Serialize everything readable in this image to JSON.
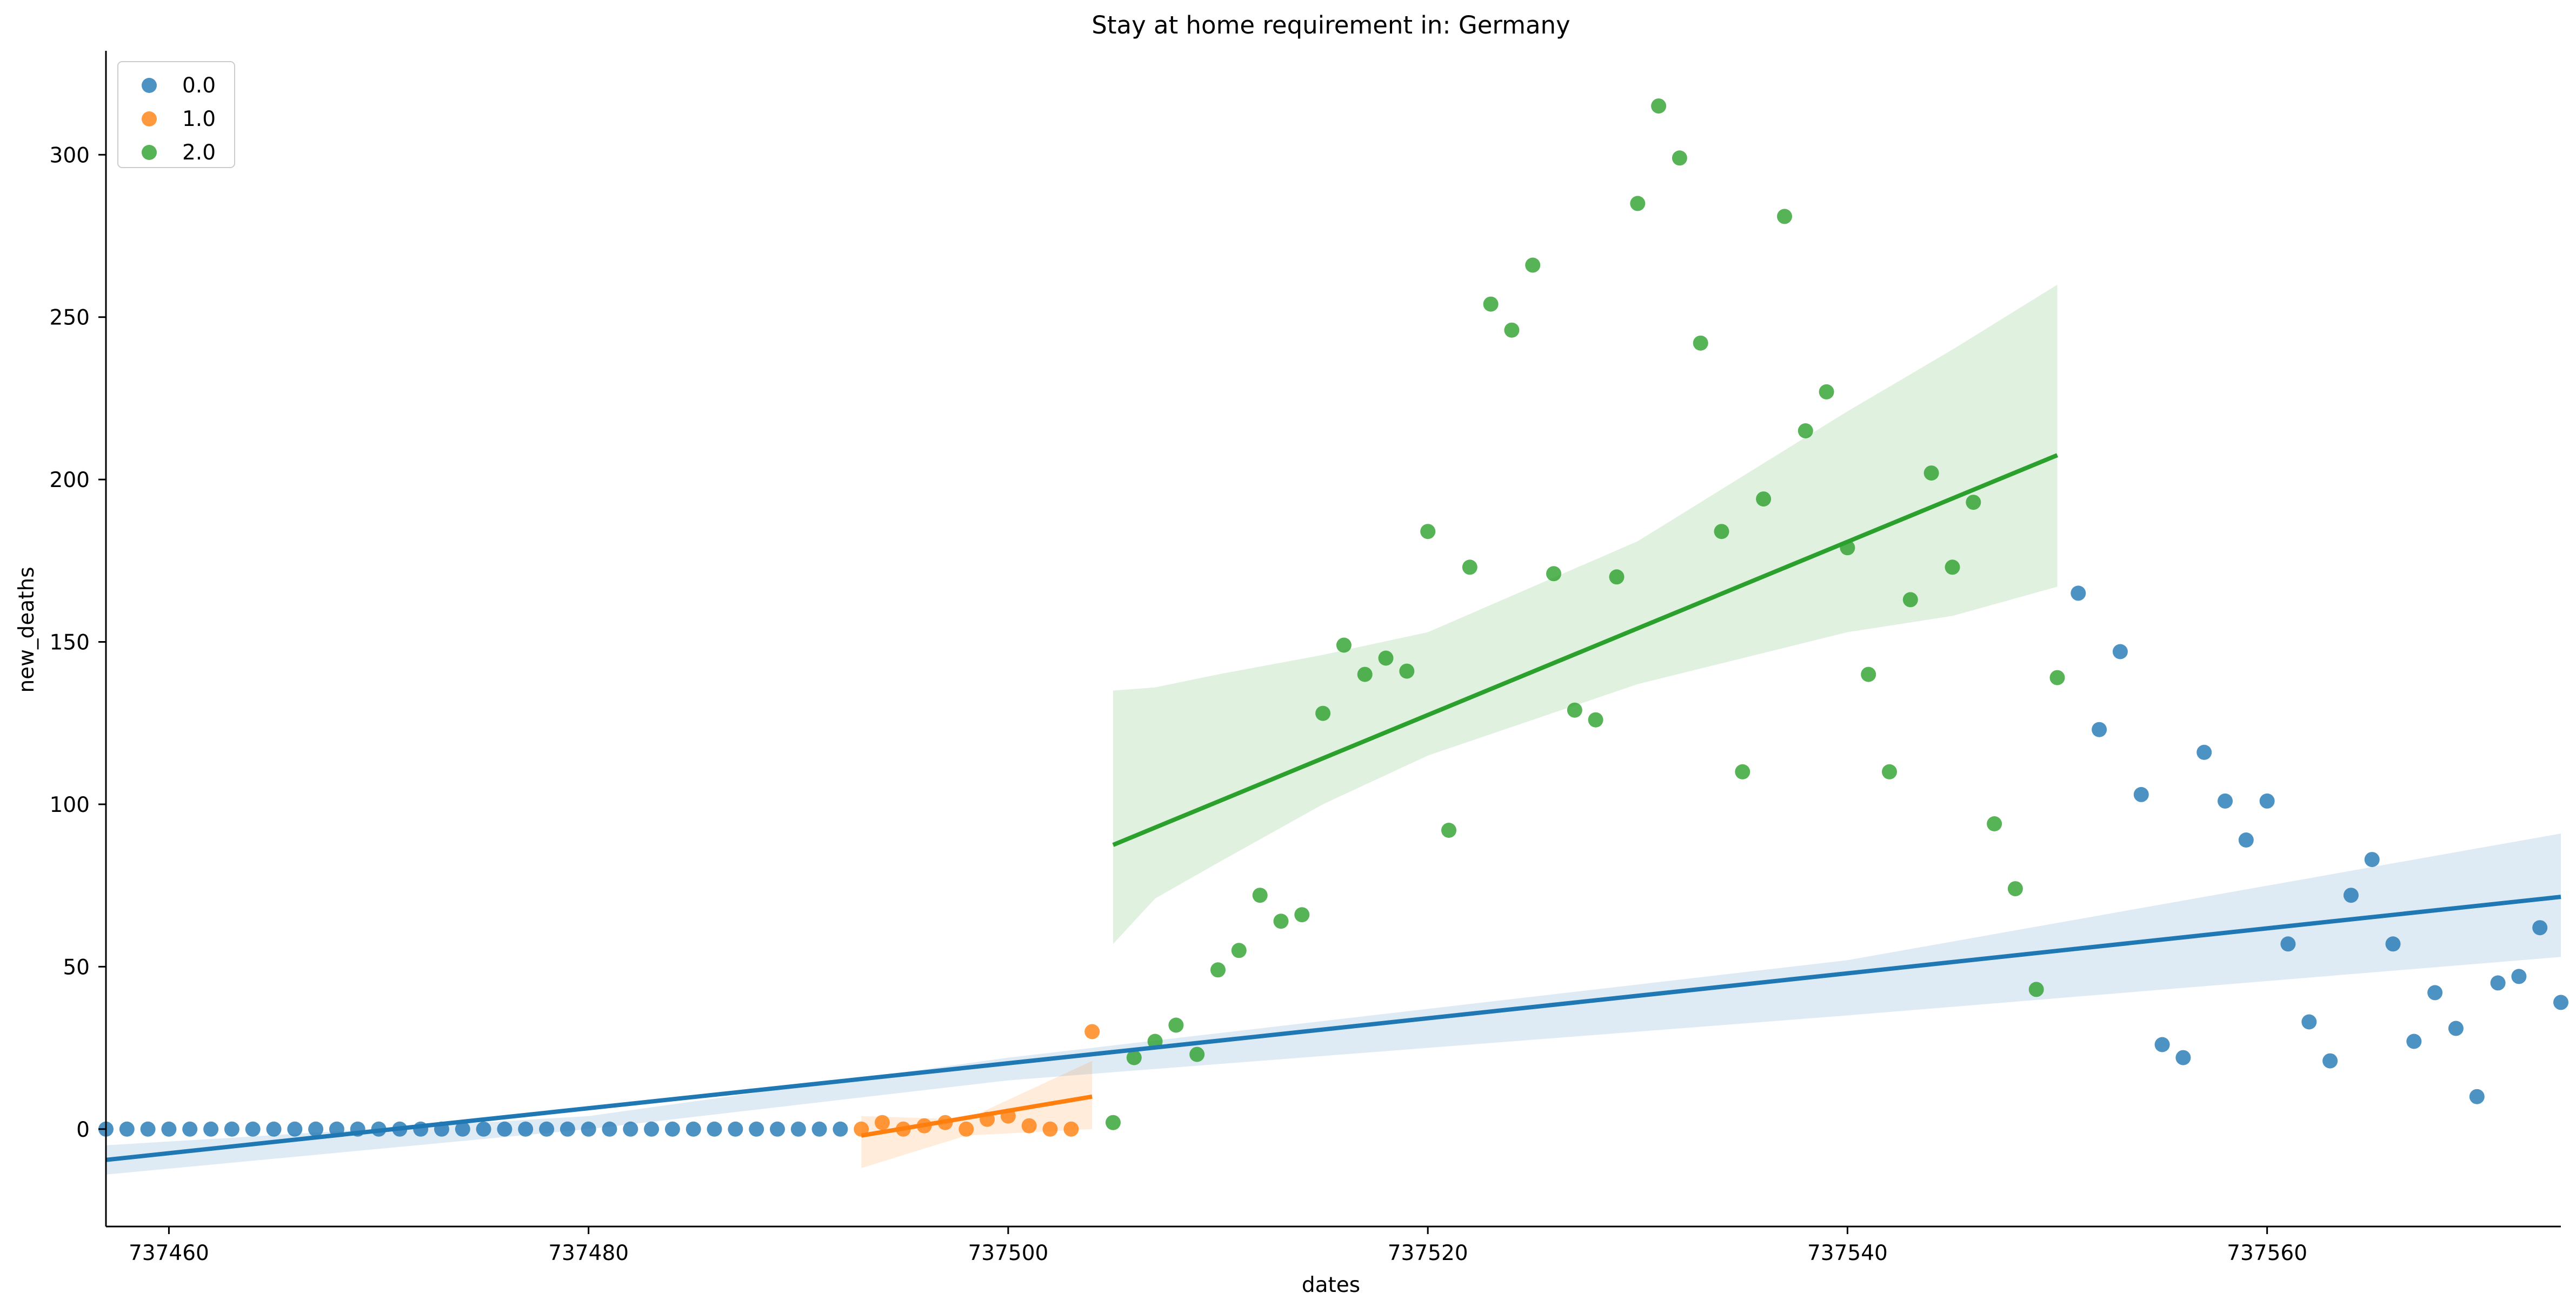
{
  "chart_data": {
    "type": "scatter",
    "title": "Stay at home requirement in: Germany",
    "xlabel": "dates",
    "ylabel": "new_deaths",
    "xlim": [
      737457,
      737574
    ],
    "ylim": [
      -30,
      332
    ],
    "xticks": [
      737460,
      737480,
      737500,
      737520,
      737540,
      737560
    ],
    "yticks": [
      0,
      50,
      100,
      150,
      200,
      250,
      300
    ],
    "grid": false,
    "legend_position": "top-left",
    "series": [
      {
        "name": "0.0",
        "color": "#1f77b4",
        "points": [
          [
            737457,
            0
          ],
          [
            737458,
            0
          ],
          [
            737459,
            0
          ],
          [
            737460,
            0
          ],
          [
            737461,
            0
          ],
          [
            737462,
            0
          ],
          [
            737463,
            0
          ],
          [
            737464,
            0
          ],
          [
            737465,
            0
          ],
          [
            737466,
            0
          ],
          [
            737467,
            0
          ],
          [
            737468,
            0
          ],
          [
            737469,
            0
          ],
          [
            737470,
            0
          ],
          [
            737471,
            0
          ],
          [
            737472,
            0
          ],
          [
            737473,
            0
          ],
          [
            737474,
            0
          ],
          [
            737475,
            0
          ],
          [
            737476,
            0
          ],
          [
            737477,
            0
          ],
          [
            737478,
            0
          ],
          [
            737479,
            0
          ],
          [
            737480,
            0
          ],
          [
            737481,
            0
          ],
          [
            737482,
            0
          ],
          [
            737483,
            0
          ],
          [
            737484,
            0
          ],
          [
            737485,
            0
          ],
          [
            737486,
            0
          ],
          [
            737487,
            0
          ],
          [
            737488,
            0
          ],
          [
            737489,
            0
          ],
          [
            737490,
            0
          ],
          [
            737491,
            0
          ],
          [
            737492,
            0
          ],
          [
            737551,
            165
          ],
          [
            737552,
            123
          ],
          [
            737553,
            147
          ],
          [
            737554,
            103
          ],
          [
            737555,
            26
          ],
          [
            737556,
            22
          ],
          [
            737557,
            116
          ],
          [
            737558,
            101
          ],
          [
            737559,
            89
          ],
          [
            737560,
            101
          ],
          [
            737561,
            57
          ],
          [
            737562,
            33
          ],
          [
            737563,
            21
          ],
          [
            737564,
            72
          ],
          [
            737565,
            83
          ],
          [
            737566,
            57
          ],
          [
            737567,
            27
          ],
          [
            737568,
            42
          ],
          [
            737569,
            31
          ],
          [
            737570,
            10
          ],
          [
            737571,
            45
          ],
          [
            737572,
            47
          ],
          [
            737573,
            62
          ],
          [
            737574,
            39
          ]
        ],
        "regression": {
          "x": [
            737457,
            737574
          ],
          "y": [
            -9.5,
            71.5
          ]
        },
        "ci_band": {
          "x": [
            737457,
            737480,
            737500,
            737520,
            737540,
            737574
          ],
          "lower": [
            -14,
            0,
            15,
            25,
            35,
            53
          ],
          "upper": [
            -5,
            4,
            22,
            37,
            52,
            91
          ]
        }
      },
      {
        "name": "1.0",
        "color": "#ff7f0e",
        "points": [
          [
            737493,
            0
          ],
          [
            737494,
            2
          ],
          [
            737495,
            0
          ],
          [
            737496,
            1
          ],
          [
            737497,
            2
          ],
          [
            737498,
            0
          ],
          [
            737499,
            3
          ],
          [
            737500,
            4
          ],
          [
            737501,
            1
          ],
          [
            737502,
            0
          ],
          [
            737503,
            0
          ],
          [
            737504,
            30
          ]
        ],
        "regression": {
          "x": [
            737493,
            737504
          ],
          "y": [
            -2,
            10
          ]
        },
        "ci_band": {
          "x": [
            737493,
            737498,
            737504
          ],
          "lower": [
            -12,
            -2,
            0
          ],
          "upper": [
            4,
            3,
            21
          ]
        }
      },
      {
        "name": "2.0",
        "color": "#2ca02c",
        "points": [
          [
            737505,
            2
          ],
          [
            737506,
            22
          ],
          [
            737507,
            27
          ],
          [
            737508,
            32
          ],
          [
            737509,
            23
          ],
          [
            737510,
            49
          ],
          [
            737511,
            55
          ],
          [
            737512,
            72
          ],
          [
            737513,
            64
          ],
          [
            737514,
            66
          ],
          [
            737515,
            128
          ],
          [
            737516,
            149
          ],
          [
            737517,
            140
          ],
          [
            737518,
            145
          ],
          [
            737519,
            141
          ],
          [
            737520,
            184
          ],
          [
            737521,
            92
          ],
          [
            737522,
            173
          ],
          [
            737523,
            254
          ],
          [
            737524,
            246
          ],
          [
            737525,
            266
          ],
          [
            737526,
            171
          ],
          [
            737527,
            129
          ],
          [
            737528,
            126
          ],
          [
            737529,
            170
          ],
          [
            737530,
            285
          ],
          [
            737531,
            315
          ],
          [
            737532,
            299
          ],
          [
            737533,
            242
          ],
          [
            737534,
            184
          ],
          [
            737535,
            110
          ],
          [
            737536,
            194
          ],
          [
            737537,
            281
          ],
          [
            737538,
            215
          ],
          [
            737539,
            227
          ],
          [
            737540,
            179
          ],
          [
            737541,
            140
          ],
          [
            737542,
            110
          ],
          [
            737543,
            163
          ],
          [
            737544,
            202
          ],
          [
            737545,
            173
          ],
          [
            737546,
            193
          ],
          [
            737547,
            94
          ],
          [
            737548,
            74
          ],
          [
            737549,
            43
          ],
          [
            737550,
            139
          ]
        ],
        "regression": {
          "x": [
            737505,
            737550
          ],
          "y": [
            87.5,
            207.5
          ]
        },
        "ci_band": {
          "x": [
            737505,
            737507,
            737510,
            737515,
            737520,
            737530,
            737540,
            737545,
            737550
          ],
          "lower": [
            57,
            71,
            82,
            100,
            115,
            137,
            153,
            158,
            167
          ],
          "upper": [
            135,
            136,
            140,
            146,
            153,
            181,
            221,
            240,
            260
          ]
        }
      }
    ]
  }
}
